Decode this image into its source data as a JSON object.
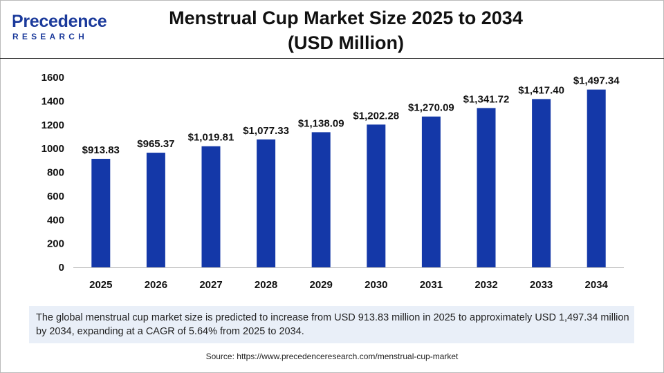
{
  "logo": {
    "top_text": "Precedence",
    "bottom_text": "RESEARCH",
    "color": "#1b3a9b"
  },
  "title": {
    "line1": "Menstrual Cup Market Size 2025 to 2034",
    "line2": "(USD Million)"
  },
  "chart_data": {
    "type": "bar",
    "categories": [
      "2025",
      "2026",
      "2027",
      "2028",
      "2029",
      "2030",
      "2031",
      "2032",
      "2033",
      "2034"
    ],
    "values": [
      913.83,
      965.37,
      1019.81,
      1077.33,
      1138.09,
      1202.28,
      1270.09,
      1341.72,
      1417.4,
      1497.34
    ],
    "data_labels": [
      "$913.83",
      "$965.37",
      "$1,019.81",
      "$1,077.33",
      "$1,138.09",
      "$1,202.28",
      "$1,270.09",
      "$1,341.72",
      "$1,417.40",
      "$1,497.34"
    ],
    "yticks": [
      0,
      200,
      400,
      600,
      800,
      1000,
      1200,
      1400,
      1600
    ],
    "ylim": [
      0,
      1600
    ],
    "grid": false,
    "legend": "none",
    "bar_color": "#1438a8"
  },
  "caption": "The global menstrual cup market size is predicted to increase from USD 913.83 million in 2025 to approximately USD 1,497.34 million by 2034, expanding at a CAGR of 5.64% from 2025 to 2034.",
  "source": "Source: https://www.precedenceresearch.com/menstrual-cup-market"
}
